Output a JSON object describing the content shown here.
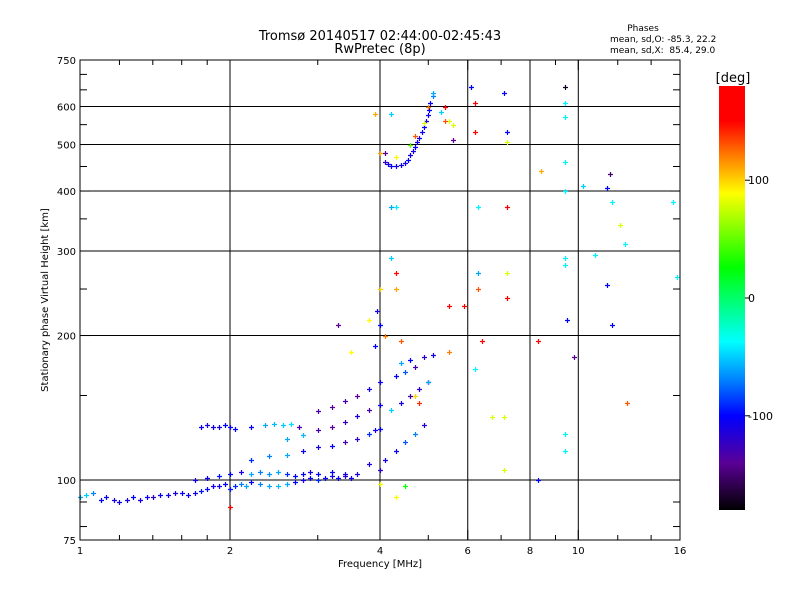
{
  "chart_data": {
    "type": "scatter",
    "title": "Tromsø 20140517 02:44:00-02:45:43",
    "subtitle": "RwPretec (8p)",
    "xlabel": "Frequency [MHz]",
    "ylabel": "Stationary phase Virtual Height [km]",
    "xscale": "log",
    "yscale": "log",
    "xlim": [
      1,
      16
    ],
    "ylim": [
      75,
      750
    ],
    "xticks": [
      1,
      2,
      4,
      6,
      8,
      10,
      16
    ],
    "yticks": [
      75,
      100,
      200,
      300,
      400,
      500,
      600,
      750
    ],
    "grid": true,
    "legend": {
      "title": "Phases",
      "lines": [
        "mean, sd,O: -85.3, 22.2",
        "mean, sd,X:  85.4, 29.0"
      ]
    },
    "colorbar": {
      "label": "[deg]",
      "range": [
        -180,
        180
      ],
      "ticks": [
        100,
        0,
        -100
      ],
      "colormap": [
        {
          "v": -180,
          "c": "#000000"
        },
        {
          "v": -140,
          "c": "#5a0096"
        },
        {
          "v": -100,
          "c": "#0000ff"
        },
        {
          "v": -70,
          "c": "#0080ff"
        },
        {
          "v": -37,
          "c": "#00ffff"
        },
        {
          "v": 26,
          "c": "#00ff00"
        },
        {
          "v": 89,
          "c": "#ffff00"
        },
        {
          "v": 120,
          "c": "#ff8000"
        },
        {
          "v": 150,
          "c": "#ff0000"
        },
        {
          "v": 180,
          "c": "#ff0000"
        }
      ]
    },
    "points_format": [
      "frequency_MHz",
      "height_km",
      "phase_deg"
    ],
    "points": [
      [
        1.0,
        92,
        -60
      ],
      [
        1.03,
        93,
        -50
      ],
      [
        1.06,
        94,
        -70
      ],
      [
        1.1,
        91,
        -100
      ],
      [
        1.13,
        92,
        -105
      ],
      [
        1.17,
        91,
        -110
      ],
      [
        1.2,
        90,
        -105
      ],
      [
        1.24,
        91,
        -110
      ],
      [
        1.28,
        92,
        -100
      ],
      [
        1.32,
        91,
        -110
      ],
      [
        1.36,
        92,
        -105
      ],
      [
        1.4,
        92,
        -120
      ],
      [
        1.45,
        93,
        -100
      ],
      [
        1.5,
        93,
        -105
      ],
      [
        1.55,
        94,
        -110
      ],
      [
        1.6,
        94,
        -100
      ],
      [
        1.65,
        93,
        -105
      ],
      [
        1.7,
        94,
        -110
      ],
      [
        1.75,
        95,
        -95
      ],
      [
        1.8,
        96,
        -100
      ],
      [
        1.85,
        97,
        -110
      ],
      [
        1.9,
        97,
        -105
      ],
      [
        1.95,
        98,
        -100
      ],
      [
        2.0,
        96,
        -95
      ],
      [
        2.05,
        97,
        -90
      ],
      [
        2.1,
        98,
        -70
      ],
      [
        2.15,
        97,
        -60
      ],
      [
        2.2,
        99,
        -100
      ],
      [
        2.3,
        98,
        -70
      ],
      [
        2.4,
        97,
        -60
      ],
      [
        2.5,
        97,
        -55
      ],
      [
        2.6,
        98,
        -60
      ],
      [
        2.7,
        99,
        -100
      ],
      [
        2.8,
        100,
        -110
      ],
      [
        2.9,
        101,
        -100
      ],
      [
        3.0,
        100,
        -90
      ],
      [
        3.1,
        101,
        -105
      ],
      [
        3.2,
        102,
        -110
      ],
      [
        3.3,
        101,
        -100
      ],
      [
        3.4,
        102,
        -120
      ],
      [
        3.5,
        101,
        -105
      ],
      [
        3.6,
        103,
        -110
      ],
      [
        2.0,
        103,
        -100
      ],
      [
        2.1,
        104,
        -110
      ],
      [
        2.2,
        103,
        -60
      ],
      [
        2.3,
        104,
        -70
      ],
      [
        2.4,
        103,
        -65
      ],
      [
        2.5,
        104,
        -60
      ],
      [
        2.6,
        103,
        -90
      ],
      [
        2.7,
        102,
        -100
      ],
      [
        2.8,
        103,
        -105
      ],
      [
        2.9,
        104,
        -110
      ],
      [
        3.0,
        103,
        -100
      ],
      [
        3.2,
        104,
        -105
      ],
      [
        3.4,
        103,
        -110
      ],
      [
        1.7,
        100,
        -110
      ],
      [
        1.8,
        101,
        -105
      ],
      [
        1.9,
        102,
        -95
      ],
      [
        1.75,
        129,
        -105
      ],
      [
        1.8,
        130,
        -110
      ],
      [
        1.85,
        129,
        -105
      ],
      [
        1.9,
        129,
        -110
      ],
      [
        1.95,
        130,
        -100
      ],
      [
        2.0,
        129,
        -105
      ],
      [
        2.05,
        128,
        -100
      ],
      [
        2.2,
        129,
        -100
      ],
      [
        2.35,
        130,
        -60
      ],
      [
        2.45,
        131,
        -55
      ],
      [
        2.55,
        130,
        -50
      ],
      [
        2.65,
        131,
        -45
      ],
      [
        2.75,
        129,
        -130
      ],
      [
        2.2,
        110,
        -90
      ],
      [
        2.4,
        112,
        -70
      ],
      [
        2.6,
        113,
        -60
      ],
      [
        2.8,
        115,
        -105
      ],
      [
        3.0,
        117,
        -110
      ],
      [
        3.2,
        118,
        -100
      ],
      [
        3.4,
        120,
        -130
      ],
      [
        3.6,
        122,
        -120
      ],
      [
        3.8,
        125,
        -90
      ],
      [
        3.9,
        127,
        -110
      ],
      [
        4.0,
        128,
        -100
      ],
      [
        2.6,
        122,
        -60
      ],
      [
        2.8,
        124,
        -55
      ],
      [
        3.0,
        127,
        -130
      ],
      [
        3.2,
        129,
        -140
      ],
      [
        3.4,
        132,
        -125
      ],
      [
        3.6,
        136,
        -110
      ],
      [
        3.8,
        140,
        -130
      ],
      [
        4.0,
        143,
        -105
      ],
      [
        3.0,
        139,
        -130
      ],
      [
        3.2,
        142,
        -140
      ],
      [
        3.4,
        146,
        -130
      ],
      [
        3.6,
        150,
        -140
      ],
      [
        3.8,
        155,
        -110
      ],
      [
        4.0,
        160,
        -105
      ],
      [
        4.3,
        165,
        -100
      ],
      [
        4.5,
        168,
        -80
      ],
      [
        4.7,
        172,
        -130
      ],
      [
        4.1,
        110,
        -110
      ],
      [
        4.3,
        115,
        -105
      ],
      [
        4.5,
        120,
        -80
      ],
      [
        4.7,
        125,
        -70
      ],
      [
        4.9,
        130,
        -115
      ],
      [
        4.2,
        140,
        -50
      ],
      [
        4.4,
        145,
        -110
      ],
      [
        4.6,
        150,
        -130
      ],
      [
        4.8,
        155,
        -120
      ],
      [
        5.0,
        160,
        -140
      ],
      [
        4.4,
        175,
        -60
      ],
      [
        4.6,
        178,
        -100
      ],
      [
        4.9,
        180,
        -120
      ],
      [
        5.1,
        182,
        -110
      ],
      [
        4.0,
        105,
        -120
      ],
      [
        3.8,
        108,
        -110
      ],
      [
        3.9,
        190,
        -100
      ],
      [
        4.0,
        210,
        -100
      ],
      [
        3.95,
        225,
        -110
      ],
      [
        4.0,
        250,
        100
      ],
      [
        3.8,
        215,
        90
      ],
      [
        4.1,
        200,
        120
      ],
      [
        4.4,
        195,
        130
      ],
      [
        3.3,
        210,
        -140
      ],
      [
        4.0,
        98,
        85
      ],
      [
        4.3,
        92,
        90
      ],
      [
        4.5,
        97,
        30
      ],
      [
        4.8,
        145,
        140
      ],
      [
        5.0,
        160,
        -60
      ],
      [
        4.7,
        150,
        100
      ],
      [
        3.5,
        185,
        90
      ],
      [
        2.0,
        88,
        150
      ],
      [
        4.2,
        290,
        -50
      ],
      [
        4.3,
        270,
        150
      ],
      [
        4.3,
        250,
        110
      ],
      [
        4.1,
        480,
        -140
      ],
      [
        4.1,
        460,
        -120
      ],
      [
        4.15,
        455,
        -110
      ],
      [
        4.2,
        452,
        -105
      ],
      [
        4.3,
        450,
        -110
      ],
      [
        4.4,
        453,
        -105
      ],
      [
        4.5,
        458,
        -110
      ],
      [
        4.55,
        465,
        -100
      ],
      [
        4.6,
        475,
        -105
      ],
      [
        4.65,
        485,
        -110
      ],
      [
        4.7,
        495,
        -100
      ],
      [
        4.75,
        505,
        -105
      ],
      [
        4.8,
        515,
        -110
      ],
      [
        4.85,
        530,
        -105
      ],
      [
        4.9,
        545,
        -100
      ],
      [
        4.95,
        560,
        -110
      ],
      [
        5.0,
        575,
        -105
      ],
      [
        5.02,
        590,
        -100
      ],
      [
        5.05,
        610,
        -105
      ],
      [
        5.1,
        630,
        -70
      ],
      [
        5.12,
        640,
        -60
      ],
      [
        4.3,
        470,
        90
      ],
      [
        4.6,
        500,
        50
      ],
      [
        4.7,
        520,
        130
      ],
      [
        4.9,
        555,
        80
      ],
      [
        5.0,
        600,
        120
      ],
      [
        4.0,
        480,
        110
      ],
      [
        3.9,
        580,
        110
      ],
      [
        4.2,
        580,
        -50
      ],
      [
        5.3,
        585,
        -50
      ],
      [
        5.5,
        560,
        80
      ],
      [
        5.6,
        510,
        -140
      ],
      [
        5.4,
        600,
        150
      ],
      [
        5.6,
        550,
        80
      ],
      [
        6.1,
        660,
        -100
      ],
      [
        6.2,
        610,
        150
      ],
      [
        6.2,
        530,
        170
      ],
      [
        7.1,
        640,
        -100
      ],
      [
        7.2,
        530,
        -100
      ],
      [
        7.2,
        505,
        80
      ],
      [
        7.2,
        370,
        170
      ],
      [
        7.2,
        270,
        80
      ],
      [
        7.2,
        240,
        150
      ],
      [
        6.3,
        370,
        -40
      ],
      [
        6.3,
        270,
        -60
      ],
      [
        6.3,
        250,
        130
      ],
      [
        5.9,
        230,
        160
      ],
      [
        4.3,
        370,
        -40
      ],
      [
        9.4,
        660,
        -170
      ],
      [
        9.4,
        610,
        -40
      ],
      [
        9.4,
        570,
        -40
      ],
      [
        9.4,
        460,
        -40
      ],
      [
        9.4,
        400,
        -40
      ],
      [
        9.4,
        290,
        -40
      ],
      [
        9.4,
        280,
        -40
      ],
      [
        9.5,
        215,
        -100
      ],
      [
        8.4,
        440,
        110
      ],
      [
        8.3,
        195,
        160
      ],
      [
        9.8,
        180,
        -140
      ],
      [
        10.2,
        410,
        -50
      ],
      [
        11.4,
        405,
        -100
      ],
      [
        12.1,
        340,
        80
      ],
      [
        11.6,
        435,
        -150
      ],
      [
        11.7,
        380,
        -40
      ],
      [
        11.4,
        255,
        -100
      ],
      [
        11.7,
        210,
        -100
      ],
      [
        12.5,
        145,
        130
      ],
      [
        15.5,
        380,
        -40
      ],
      [
        15.8,
        265,
        -40
      ],
      [
        12.4,
        310,
        -40
      ],
      [
        10.8,
        295,
        -40
      ],
      [
        9.4,
        125,
        -40
      ],
      [
        9.4,
        115,
        -40
      ],
      [
        8.3,
        100,
        -100
      ],
      [
        7.1,
        135,
        80
      ],
      [
        7.1,
        105,
        80
      ],
      [
        6.7,
        135,
        80
      ],
      [
        6.2,
        170,
        -40
      ],
      [
        5.5,
        230,
        150
      ],
      [
        5.5,
        185,
        120
      ],
      [
        6.4,
        195,
        160
      ],
      [
        4.2,
        370,
        -60
      ],
      [
        5.4,
        560,
        130
      ]
    ]
  }
}
